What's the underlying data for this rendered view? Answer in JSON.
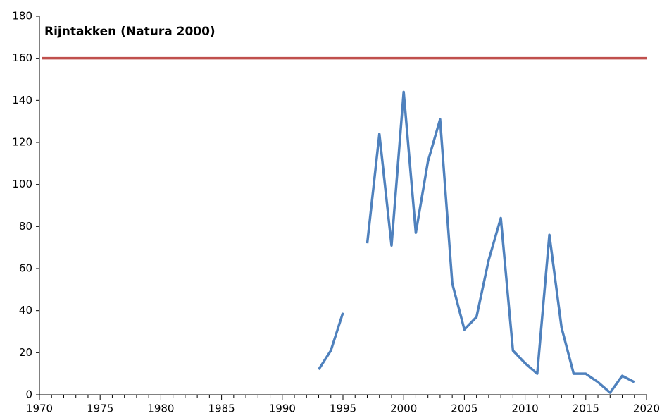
{
  "chart_data": {
    "type": "line",
    "title": "Rijntakken (Natura 2000)",
    "x": [
      1993,
      1994,
      1995,
      1996,
      1997,
      1998,
      1999,
      2000,
      2001,
      2002,
      2003,
      2004,
      2005,
      2006,
      2007,
      2008,
      2009,
      2010,
      2011,
      2012,
      2013,
      2014,
      2015,
      2016,
      2017,
      2018,
      2019
    ],
    "series": [
      {
        "color": "#4f81bd",
        "values": [
          12,
          21,
          39,
          null,
          72,
          124,
          71,
          144,
          77,
          111,
          131,
          53,
          31,
          37,
          64,
          84,
          21,
          15,
          10,
          76,
          32,
          10,
          10,
          6,
          1,
          9,
          6
        ]
      }
    ],
    "hlines": [
      {
        "value": 160,
        "color": "#c0504d"
      }
    ],
    "xlim": [
      1970,
      2020
    ],
    "xticks": [
      1970,
      1975,
      1980,
      1985,
      1990,
      1995,
      2000,
      2005,
      2010,
      2015,
      2020
    ],
    "ylim": [
      0,
      180
    ],
    "yticks": [
      0,
      20,
      40,
      60,
      80,
      100,
      120,
      140,
      160,
      180
    ]
  }
}
